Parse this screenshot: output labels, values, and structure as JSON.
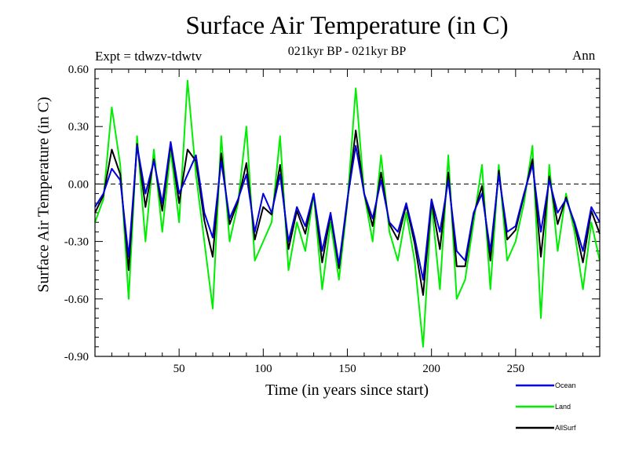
{
  "header": {
    "title": "Surface Air Temperature (in C)",
    "subtitle": "021kyr BP - 021kyr BP",
    "experiment": "Expt = tdwzv-tdwtv",
    "season": "Ann"
  },
  "chart_data": {
    "type": "line",
    "title": "Surface Air Temperature (in C)",
    "subtitle": "021kyr BP - 021kyr BP",
    "xlabel": "Time (in years since start)",
    "ylabel": "Surface Air Temperature (in C)",
    "xlim": [
      0,
      300
    ],
    "ylim": [
      -0.9,
      0.6
    ],
    "x_ticks": [
      50,
      100,
      150,
      200,
      250
    ],
    "x_tick_labels": [
      "50",
      "100",
      "150",
      "200",
      "250"
    ],
    "y_ticks": [
      -0.9,
      -0.6,
      -0.3,
      0.0,
      0.3,
      0.6
    ],
    "y_tick_labels": [
      "-0.90",
      "-0.60",
      "-0.30",
      "0.00",
      "0.30",
      "0.60"
    ],
    "zero_line": true,
    "grid": false,
    "legend_position": "bottom-right, outside plot",
    "x": [
      0,
      5,
      10,
      15,
      20,
      25,
      30,
      35,
      40,
      45,
      50,
      55,
      60,
      65,
      70,
      75,
      80,
      85,
      90,
      95,
      100,
      105,
      110,
      115,
      120,
      125,
      130,
      135,
      140,
      145,
      150,
      155,
      160,
      165,
      170,
      175,
      180,
      185,
      190,
      195,
      200,
      205,
      210,
      215,
      220,
      225,
      230,
      235,
      240,
      245,
      250,
      255,
      260,
      265,
      270,
      275,
      280,
      285,
      290,
      295,
      300
    ],
    "series": [
      {
        "name": "Ocean",
        "color": "#0000dd",
        "values": [
          -0.12,
          -0.05,
          0.08,
          0.02,
          -0.38,
          0.2,
          -0.05,
          0.12,
          -0.1,
          0.22,
          -0.05,
          0.05,
          0.15,
          -0.15,
          -0.28,
          0.12,
          -0.18,
          -0.08,
          0.05,
          -0.25,
          -0.05,
          -0.15,
          0.05,
          -0.3,
          -0.12,
          -0.22,
          -0.05,
          -0.35,
          -0.15,
          -0.42,
          -0.08,
          0.2,
          -0.05,
          -0.18,
          0.02,
          -0.2,
          -0.25,
          -0.1,
          -0.28,
          -0.5,
          -0.08,
          -0.25,
          0.02,
          -0.35,
          -0.4,
          -0.15,
          -0.05,
          -0.35,
          0.05,
          -0.25,
          -0.22,
          -0.05,
          0.1,
          -0.25,
          0.02,
          -0.15,
          -0.08,
          -0.2,
          -0.35,
          -0.12,
          -0.2
        ]
      },
      {
        "name": "Land",
        "color": "#00ee00",
        "values": [
          -0.2,
          -0.08,
          0.4,
          0.1,
          -0.6,
          0.25,
          -0.3,
          0.18,
          -0.25,
          0.18,
          -0.2,
          0.54,
          0.05,
          -0.3,
          -0.65,
          0.25,
          -0.3,
          -0.1,
          0.3,
          -0.4,
          -0.3,
          -0.2,
          0.25,
          -0.45,
          -0.2,
          -0.35,
          -0.05,
          -0.55,
          -0.2,
          -0.5,
          -0.1,
          0.5,
          -0.05,
          -0.3,
          0.15,
          -0.25,
          -0.4,
          -0.15,
          -0.4,
          -0.85,
          -0.1,
          -0.55,
          0.15,
          -0.6,
          -0.5,
          -0.2,
          0.1,
          -0.55,
          0.1,
          -0.4,
          -0.3,
          -0.1,
          0.2,
          -0.7,
          0.1,
          -0.35,
          -0.05,
          -0.25,
          -0.55,
          -0.2,
          -0.4
        ]
      },
      {
        "name": "AllSurf",
        "color": "#000000",
        "values": [
          -0.15,
          -0.06,
          0.18,
          0.05,
          -0.45,
          0.21,
          -0.12,
          0.13,
          -0.14,
          0.21,
          -0.1,
          0.18,
          0.12,
          -0.19,
          -0.38,
          0.16,
          -0.21,
          -0.09,
          0.11,
          -0.29,
          -0.12,
          -0.16,
          0.1,
          -0.34,
          -0.14,
          -0.26,
          -0.05,
          -0.41,
          -0.16,
          -0.44,
          -0.09,
          0.28,
          -0.05,
          -0.22,
          0.06,
          -0.21,
          -0.29,
          -0.11,
          -0.31,
          -0.58,
          -0.09,
          -0.34,
          0.06,
          -0.43,
          -0.43,
          -0.16,
          -0.01,
          -0.4,
          0.07,
          -0.29,
          -0.24,
          -0.06,
          0.13,
          -0.38,
          0.04,
          -0.21,
          -0.07,
          -0.21,
          -0.41,
          -0.14,
          -0.26
        ]
      }
    ]
  }
}
